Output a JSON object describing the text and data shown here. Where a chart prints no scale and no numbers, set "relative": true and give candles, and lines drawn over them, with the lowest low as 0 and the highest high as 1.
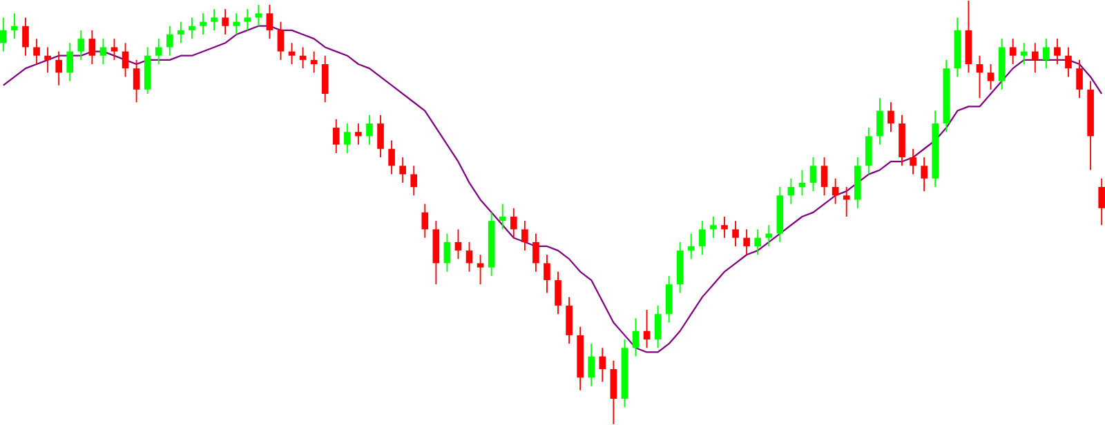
{
  "chart_data": {
    "type": "candlestick",
    "relative": true,
    "categories": [
      null,
      null,
      null,
      null,
      null,
      null,
      null,
      null,
      null,
      null,
      null,
      null,
      null,
      null,
      null,
      null,
      null,
      null,
      null,
      null,
      null,
      null,
      null,
      null,
      null,
      null,
      null,
      null,
      null,
      null,
      null,
      null,
      null,
      null,
      null,
      null,
      null,
      null,
      null,
      null,
      null,
      null,
      null,
      null,
      null,
      null,
      null,
      null,
      null,
      null,
      null,
      null,
      null,
      null,
      null,
      null,
      null,
      null,
      null,
      null,
      null,
      null,
      null,
      null,
      null,
      null,
      null,
      null,
      null,
      null,
      null,
      null,
      null,
      null,
      null,
      null,
      null,
      null,
      null,
      null,
      null,
      null,
      null,
      null,
      null,
      null,
      null,
      null,
      null,
      null,
      null,
      null,
      null,
      null,
      null,
      null,
      null,
      null,
      null,
      null
    ],
    "ohlc": [
      [
        0.9,
        0.96,
        0.88,
        0.93
      ],
      [
        0.93,
        0.97,
        0.91,
        0.94
      ],
      [
        0.94,
        0.96,
        0.87,
        0.89
      ],
      [
        0.89,
        0.91,
        0.85,
        0.87
      ],
      [
        0.87,
        0.89,
        0.83,
        0.86
      ],
      [
        0.86,
        0.88,
        0.8,
        0.83
      ],
      [
        0.83,
        0.9,
        0.81,
        0.88
      ],
      [
        0.88,
        0.93,
        0.86,
        0.91
      ],
      [
        0.91,
        0.93,
        0.85,
        0.87
      ],
      [
        0.87,
        0.91,
        0.85,
        0.89
      ],
      [
        0.89,
        0.91,
        0.86,
        0.88
      ],
      [
        0.88,
        0.9,
        0.82,
        0.84
      ],
      [
        0.84,
        0.86,
        0.76,
        0.79
      ],
      [
        0.79,
        0.89,
        0.78,
        0.87
      ],
      [
        0.87,
        0.91,
        0.85,
        0.89
      ],
      [
        0.89,
        0.94,
        0.87,
        0.92
      ],
      [
        0.92,
        0.95,
        0.9,
        0.93
      ],
      [
        0.93,
        0.96,
        0.91,
        0.94
      ],
      [
        0.94,
        0.97,
        0.92,
        0.95
      ],
      [
        0.95,
        0.98,
        0.93,
        0.96
      ],
      [
        0.96,
        0.98,
        0.92,
        0.94
      ],
      [
        0.94,
        0.97,
        0.92,
        0.95
      ],
      [
        0.95,
        0.98,
        0.93,
        0.96
      ],
      [
        0.96,
        0.99,
        0.94,
        0.97
      ],
      [
        0.97,
        0.99,
        0.91,
        0.93
      ],
      [
        0.93,
        0.95,
        0.86,
        0.88
      ],
      [
        0.88,
        0.9,
        0.85,
        0.87
      ],
      [
        0.87,
        0.89,
        0.84,
        0.86
      ],
      [
        0.86,
        0.88,
        0.83,
        0.85
      ],
      [
        0.85,
        0.87,
        0.76,
        0.78
      ],
      [
        0.7,
        0.72,
        0.64,
        0.66
      ],
      [
        0.66,
        0.71,
        0.64,
        0.69
      ],
      [
        0.69,
        0.71,
        0.66,
        0.68
      ],
      [
        0.68,
        0.73,
        0.66,
        0.71
      ],
      [
        0.71,
        0.73,
        0.63,
        0.65
      ],
      [
        0.65,
        0.67,
        0.59,
        0.61
      ],
      [
        0.61,
        0.63,
        0.57,
        0.59
      ],
      [
        0.59,
        0.61,
        0.54,
        0.56
      ],
      [
        0.5,
        0.52,
        0.44,
        0.46
      ],
      [
        0.46,
        0.48,
        0.33,
        0.38
      ],
      [
        0.38,
        0.45,
        0.36,
        0.43
      ],
      [
        0.43,
        0.46,
        0.39,
        0.41
      ],
      [
        0.41,
        0.43,
        0.36,
        0.38
      ],
      [
        0.38,
        0.4,
        0.33,
        0.37
      ],
      [
        0.37,
        0.5,
        0.35,
        0.48
      ],
      [
        0.48,
        0.52,
        0.46,
        0.49
      ],
      [
        0.49,
        0.51,
        0.44,
        0.46
      ],
      [
        0.46,
        0.48,
        0.41,
        0.43
      ],
      [
        0.43,
        0.45,
        0.36,
        0.38
      ],
      [
        0.38,
        0.4,
        0.31,
        0.34
      ],
      [
        0.34,
        0.36,
        0.26,
        0.28
      ],
      [
        0.28,
        0.3,
        0.19,
        0.21
      ],
      [
        0.21,
        0.23,
        0.08,
        0.11
      ],
      [
        0.11,
        0.19,
        0.09,
        0.16
      ],
      [
        0.16,
        0.18,
        0.1,
        0.13
      ],
      [
        0.13,
        0.15,
        0.0,
        0.06
      ],
      [
        0.06,
        0.2,
        0.04,
        0.18
      ],
      [
        0.18,
        0.25,
        0.16,
        0.22
      ],
      [
        0.22,
        0.27,
        0.18,
        0.2
      ],
      [
        0.2,
        0.28,
        0.18,
        0.26
      ],
      [
        0.26,
        0.35,
        0.24,
        0.33
      ],
      [
        0.33,
        0.43,
        0.31,
        0.41
      ],
      [
        0.41,
        0.45,
        0.39,
        0.42
      ],
      [
        0.42,
        0.48,
        0.4,
        0.46
      ],
      [
        0.46,
        0.49,
        0.44,
        0.47
      ],
      [
        0.47,
        0.49,
        0.44,
        0.46
      ],
      [
        0.46,
        0.48,
        0.42,
        0.44
      ],
      [
        0.44,
        0.46,
        0.4,
        0.42
      ],
      [
        0.42,
        0.46,
        0.4,
        0.44
      ],
      [
        0.44,
        0.47,
        0.42,
        0.45
      ],
      [
        0.45,
        0.56,
        0.43,
        0.54
      ],
      [
        0.54,
        0.58,
        0.52,
        0.56
      ],
      [
        0.56,
        0.6,
        0.54,
        0.57
      ],
      [
        0.57,
        0.63,
        0.55,
        0.61
      ],
      [
        0.61,
        0.63,
        0.54,
        0.56
      ],
      [
        0.56,
        0.58,
        0.52,
        0.54
      ],
      [
        0.54,
        0.56,
        0.49,
        0.53
      ],
      [
        0.53,
        0.63,
        0.51,
        0.61
      ],
      [
        0.61,
        0.7,
        0.59,
        0.68
      ],
      [
        0.68,
        0.77,
        0.66,
        0.74
      ],
      [
        0.74,
        0.76,
        0.69,
        0.71
      ],
      [
        0.71,
        0.73,
        0.61,
        0.63
      ],
      [
        0.63,
        0.65,
        0.59,
        0.61
      ],
      [
        0.61,
        0.63,
        0.55,
        0.58
      ],
      [
        0.58,
        0.74,
        0.56,
        0.71
      ],
      [
        0.71,
        0.86,
        0.69,
        0.84
      ],
      [
        0.84,
        0.96,
        0.82,
        0.93
      ],
      [
        0.93,
        1.0,
        0.83,
        0.85
      ],
      [
        0.85,
        0.87,
        0.77,
        0.83
      ],
      [
        0.83,
        0.85,
        0.79,
        0.81
      ],
      [
        0.81,
        0.91,
        0.79,
        0.89
      ],
      [
        0.89,
        0.91,
        0.85,
        0.87
      ],
      [
        0.87,
        0.9,
        0.85,
        0.88
      ],
      [
        0.88,
        0.9,
        0.83,
        0.86
      ],
      [
        0.86,
        0.91,
        0.84,
        0.89
      ],
      [
        0.89,
        0.91,
        0.85,
        0.87
      ],
      [
        0.87,
        0.89,
        0.82,
        0.84
      ],
      [
        0.84,
        0.86,
        0.77,
        0.79
      ],
      [
        0.79,
        0.81,
        0.6,
        0.68
      ],
      [
        0.56,
        0.58,
        0.47,
        0.51
      ]
    ],
    "colors": [
      "#00ff00",
      "#00ff00",
      "#ff0000",
      "#ff0000",
      "#ff0000",
      "#ff0000",
      "#00ff00",
      "#00ff00",
      "#ff0000",
      "#00ff00",
      "#ff0000",
      "#ff0000",
      "#ff0000",
      "#00ff00",
      "#00ff00",
      "#00ff00",
      "#00ff00",
      "#00ff00",
      "#00ff00",
      "#00ff00",
      "#ff0000",
      "#00ff00",
      "#00ff00",
      "#00ff00",
      "#ff0000",
      "#ff0000",
      "#ff0000",
      "#ff0000",
      "#ff0000",
      "#ff0000",
      "#ff0000",
      "#00ff00",
      "#ff0000",
      "#00ff00",
      "#ff0000",
      "#ff0000",
      "#ff0000",
      "#ff0000",
      "#ff0000",
      "#ff0000",
      "#00ff00",
      "#ff0000",
      "#ff0000",
      "#ff0000",
      "#00ff00",
      "#00ff00",
      "#ff0000",
      "#ff0000",
      "#ff0000",
      "#ff0000",
      "#ff0000",
      "#ff0000",
      "#ff0000",
      "#00ff00",
      "#ff0000",
      "#ff0000",
      "#00ff00",
      "#00ff00",
      "#ff0000",
      "#00ff00",
      "#00ff00",
      "#00ff00",
      "#00ff00",
      "#00ff00",
      "#00ff00",
      "#ff0000",
      "#ff0000",
      "#ff0000",
      "#00ff00",
      "#00ff00",
      "#00ff00",
      "#00ff00",
      "#00ff00",
      "#00ff00",
      "#ff0000",
      "#ff0000",
      "#ff0000",
      "#00ff00",
      "#00ff00",
      "#00ff00",
      "#ff0000",
      "#ff0000",
      "#ff0000",
      "#ff0000",
      "#00ff00",
      "#00ff00",
      "#00ff00",
      "#ff0000",
      "#ff0000",
      "#ff0000",
      "#00ff00",
      "#ff0000",
      "#00ff00",
      "#ff0000",
      "#00ff00",
      "#ff0000",
      "#ff0000",
      "#ff0000",
      "#ff0000",
      "#ff0000"
    ],
    "series": [
      {
        "type": "line",
        "color": "#800080",
        "values": [
          0.8,
          0.82,
          0.84,
          0.85,
          0.86,
          0.87,
          0.87,
          0.87,
          0.88,
          0.88,
          0.87,
          0.86,
          0.85,
          0.86,
          0.86,
          0.86,
          0.87,
          0.87,
          0.88,
          0.89,
          0.9,
          0.92,
          0.93,
          0.94,
          0.94,
          0.93,
          0.93,
          0.92,
          0.91,
          0.89,
          0.88,
          0.87,
          0.85,
          0.84,
          0.82,
          0.8,
          0.78,
          0.76,
          0.74,
          0.7,
          0.66,
          0.62,
          0.57,
          0.53,
          0.5,
          0.47,
          0.44,
          0.43,
          0.42,
          0.42,
          0.41,
          0.39,
          0.36,
          0.34,
          0.29,
          0.24,
          0.21,
          0.18,
          0.17,
          0.17,
          0.19,
          0.22,
          0.26,
          0.3,
          0.33,
          0.36,
          0.38,
          0.4,
          0.41,
          0.43,
          0.45,
          0.47,
          0.49,
          0.5,
          0.52,
          0.54,
          0.55,
          0.57,
          0.59,
          0.6,
          0.62,
          0.62,
          0.63,
          0.65,
          0.67,
          0.7,
          0.74,
          0.75,
          0.75,
          0.78,
          0.81,
          0.84,
          0.86,
          0.86,
          0.86,
          0.86,
          0.86,
          0.85,
          0.82,
          0.78
        ]
      }
    ]
  }
}
